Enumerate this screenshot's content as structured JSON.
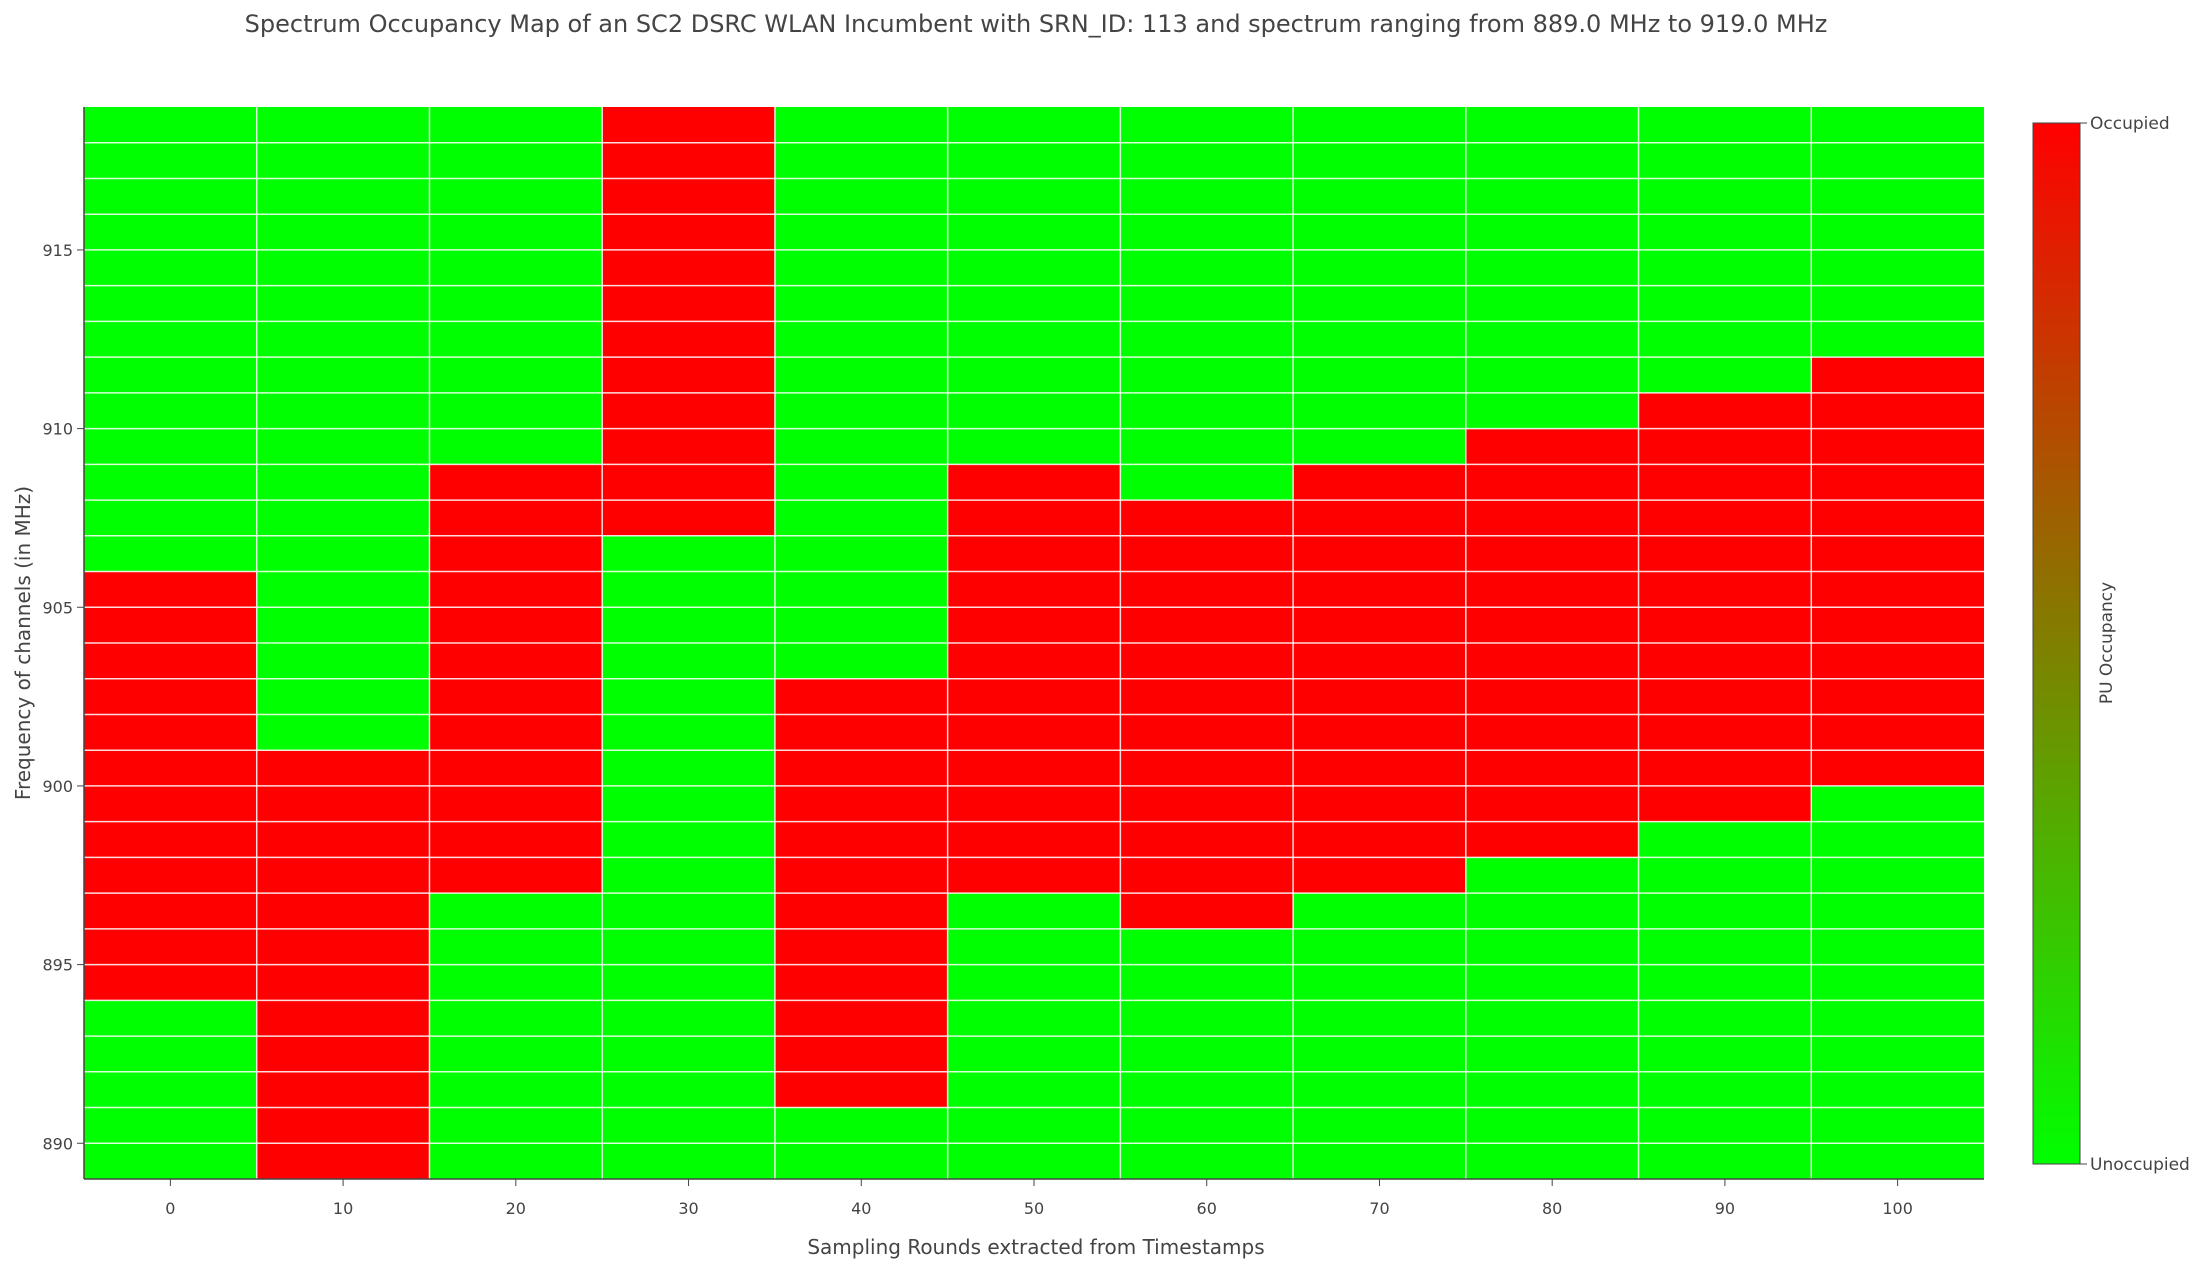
{
  "colors": {
    "occupied": "#ff0000",
    "unoccupied": "#00ff00",
    "grid": "#ffffff",
    "axis": "#444444",
    "text": "#444444"
  },
  "chart_data": {
    "type": "heatmap",
    "title": "Spectrum Occupancy Map of an SC2 DSRC WLAN Incumbent with SRN_ID: 113 and spectrum ranging from 889.0 MHz to 919.0 MHz",
    "xlabel": "Sampling Rounds extracted from Timestamps",
    "ylabel": "Frequency of channels (in MHz)",
    "x": [
      0,
      10,
      20,
      30,
      40,
      50,
      60,
      70,
      80,
      90,
      100
    ],
    "x_ticks": [
      "0",
      "10",
      "20",
      "30",
      "40",
      "50",
      "60",
      "70",
      "80",
      "90",
      "100"
    ],
    "y_ticks": [
      "890",
      "895",
      "900",
      "905",
      "910",
      "915"
    ],
    "y_tick_values": [
      890,
      895,
      900,
      905,
      910,
      915
    ],
    "frequency_bins": {
      "start": 889,
      "end": 919,
      "step": 1
    },
    "xlim": [
      -5,
      105
    ],
    "ylim": [
      889,
      919
    ],
    "grid": true,
    "occupied_ranges_mhz": [
      [
        894,
        906
      ],
      [
        889,
        901
      ],
      [
        897,
        909
      ],
      [
        907,
        919
      ],
      [
        891,
        903
      ],
      [
        897,
        909
      ],
      [
        896,
        908
      ],
      [
        897,
        909
      ],
      [
        898,
        910
      ],
      [
        899,
        911
      ],
      [
        900,
        912
      ]
    ],
    "colorbar": {
      "title": "PU Occupancy",
      "top_label": "Occupied",
      "bottom_label": "Unoccupied",
      "scale": [
        "#00ff00",
        "#ff0000"
      ]
    }
  }
}
